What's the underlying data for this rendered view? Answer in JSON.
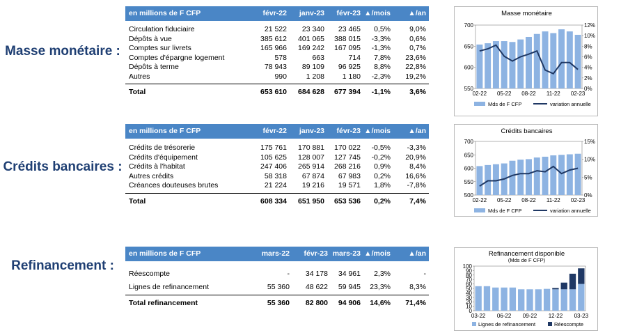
{
  "sections": {
    "masse": {
      "label": "Masse monétaire :",
      "headers": [
        "en millions de F CFP",
        "févr-22",
        "janv-23",
        "févr-23",
        "▲/mois",
        "▲/an"
      ],
      "rows": [
        [
          "Circulation fiduciaire",
          "21 522",
          "23 340",
          "23 465",
          "0,5%",
          "9,0%"
        ],
        [
          "Dépôts à vue",
          "385 612",
          "401 065",
          "388 015",
          "-3,3%",
          "0,6%"
        ],
        [
          "Comptes sur livrets",
          "165 966",
          "169 242",
          "167 095",
          "-1,3%",
          "0,7%"
        ],
        [
          "Comptes d'épargne logement",
          "578",
          "663",
          "714",
          "7,8%",
          "23,6%"
        ],
        [
          "Dépôts à terme",
          "78 943",
          "89 109",
          "96 925",
          "8,8%",
          "22,8%"
        ],
        [
          "Autres",
          "990",
          "1 208",
          "1 180",
          "-2,3%",
          "19,2%"
        ]
      ],
      "total": [
        "Total",
        "653 610",
        "684 628",
        "677 394",
        "-1,1%",
        "3,6%"
      ]
    },
    "credits": {
      "label": "Crédits bancaires :",
      "headers": [
        "en millions de F CFP",
        "févr-22",
        "janv-23",
        "févr-23",
        "▲/mois",
        "▲/an"
      ],
      "rows": [
        [
          "Crédits de trésorerie",
          "175 761",
          "170 881",
          "170 022",
          "-0,5%",
          "-3,3%"
        ],
        [
          "Crédits d'équipement",
          "105 625",
          "128 007",
          "127 745",
          "-0,2%",
          "20,9%"
        ],
        [
          "Crédits à l'habitat",
          "247 406",
          "265 914",
          "268 216",
          "0,9%",
          "8,4%"
        ],
        [
          "Autres crédits",
          "58 318",
          "67 874",
          "67 983",
          "0,2%",
          "16,6%"
        ],
        [
          "Créances douteuses brutes",
          "21 224",
          "19 216",
          "19 571",
          "1,8%",
          "-7,8%"
        ]
      ],
      "total": [
        "Total",
        "608 334",
        "651 950",
        "653 536",
        "0,2%",
        "7,4%"
      ]
    },
    "refi": {
      "label": "Refinancement :",
      "headers": [
        "en millions de F CFP",
        "mars-22",
        "févr-23",
        "mars-23",
        "▲/mois",
        "▲/an"
      ],
      "rows": [
        [
          "Réescompte",
          "-",
          "34 178",
          "34 961",
          "2,3%",
          "-"
        ],
        [
          "Lignes de refinancement",
          "55 360",
          "48 622",
          "59 945",
          "23,3%",
          "8,3%"
        ]
      ],
      "total": [
        "Total refinancement",
        "55 360",
        "82 800",
        "94 906",
        "14,6%",
        "71,4%"
      ]
    }
  },
  "chart_data": [
    {
      "type": "bar+line",
      "title": "Masse monétaire",
      "x_tick_labels": [
        "02-22",
        "05-22",
        "08-22",
        "11-22",
        "02-23"
      ],
      "categories": [
        "02-22",
        "03-22",
        "04-22",
        "05-22",
        "06-22",
        "07-22",
        "08-22",
        "09-22",
        "10-22",
        "11-22",
        "12-22",
        "01-23",
        "02-23"
      ],
      "series": [
        {
          "name": "Mds de F CFP",
          "kind": "bar",
          "axis": "left",
          "values": [
            654,
            657,
            662,
            662,
            660,
            666,
            672,
            679,
            685,
            681,
            690,
            685,
            677
          ]
        },
        {
          "name": "variation annuelle",
          "kind": "line",
          "axis": "right",
          "values": [
            7.1,
            7.5,
            8.2,
            6.1,
            5.2,
            6.0,
            6.5,
            7.1,
            3.5,
            2.8,
            4.9,
            4.9,
            3.6
          ]
        }
      ],
      "ylim_left": [
        550,
        700
      ],
      "yticks_left": [
        "550",
        "600",
        "650",
        "700"
      ],
      "ylim_right": [
        0,
        12
      ],
      "yticks_right": [
        "0%",
        "2%",
        "4%",
        "6%",
        "8%",
        "10%",
        "12%"
      ],
      "colors": {
        "bar": "#8db3e2",
        "line": "#1f3864"
      },
      "legend": "bottom"
    },
    {
      "type": "bar+line",
      "title": "Crédits bancaires",
      "x_tick_labels": [
        "02-22",
        "05-22",
        "08-22",
        "11-22",
        "02-23"
      ],
      "categories": [
        "02-22",
        "03-22",
        "04-22",
        "05-22",
        "06-22",
        "07-22",
        "08-22",
        "09-22",
        "10-22",
        "11-22",
        "12-22",
        "01-23",
        "02-23"
      ],
      "series": [
        {
          "name": "Mds de F CFP",
          "kind": "bar",
          "axis": "left",
          "values": [
            608,
            612,
            615,
            618,
            628,
            632,
            634,
            640,
            643,
            648,
            650,
            652,
            654
          ]
        },
        {
          "name": "variation annuelle",
          "kind": "line",
          "axis": "right",
          "values": [
            2.5,
            4.0,
            4.0,
            4.5,
            5.5,
            6.0,
            6.0,
            6.8,
            6.5,
            8.0,
            6.0,
            7.0,
            7.5
          ]
        }
      ],
      "ylim_left": [
        500,
        700
      ],
      "yticks_left": [
        "500",
        "550",
        "600",
        "650",
        "700"
      ],
      "ylim_right": [
        0,
        15
      ],
      "yticks_right": [
        "0%",
        "5%",
        "10%",
        "15%"
      ],
      "colors": {
        "bar": "#8db3e2",
        "line": "#1f3864"
      },
      "legend": "bottom"
    },
    {
      "type": "stacked-bar",
      "title": "Refinancement disponible",
      "subtitle": "(Mds de F CFP)",
      "x_tick_labels": [
        "03-22",
        "06-22",
        "09-22",
        "12-22",
        "03-23"
      ],
      "categories": [
        "03-22",
        "04-22",
        "05-22",
        "06-22",
        "07-22",
        "08-22",
        "09-22",
        "10-22",
        "11-22",
        "12-22",
        "01-23",
        "02-23",
        "03-23"
      ],
      "series": [
        {
          "name": "Lignes de refinancement",
          "values": [
            55,
            55,
            52,
            52,
            52,
            48,
            48,
            48,
            49,
            48,
            48,
            48,
            60
          ]
        },
        {
          "name": "Réescompte",
          "values": [
            0,
            0,
            0,
            0,
            0,
            0,
            0,
            0,
            0,
            3,
            15,
            35,
            35
          ]
        }
      ],
      "ylim": [
        0,
        100
      ],
      "yticks": [
        "0",
        "10",
        "20",
        "30",
        "40",
        "50",
        "60",
        "70",
        "80",
        "90",
        "100"
      ],
      "colors": {
        "Lignes de refinancement": "#8db3e2",
        "Réescompte": "#1f3864"
      },
      "legend": "bottom"
    }
  ]
}
